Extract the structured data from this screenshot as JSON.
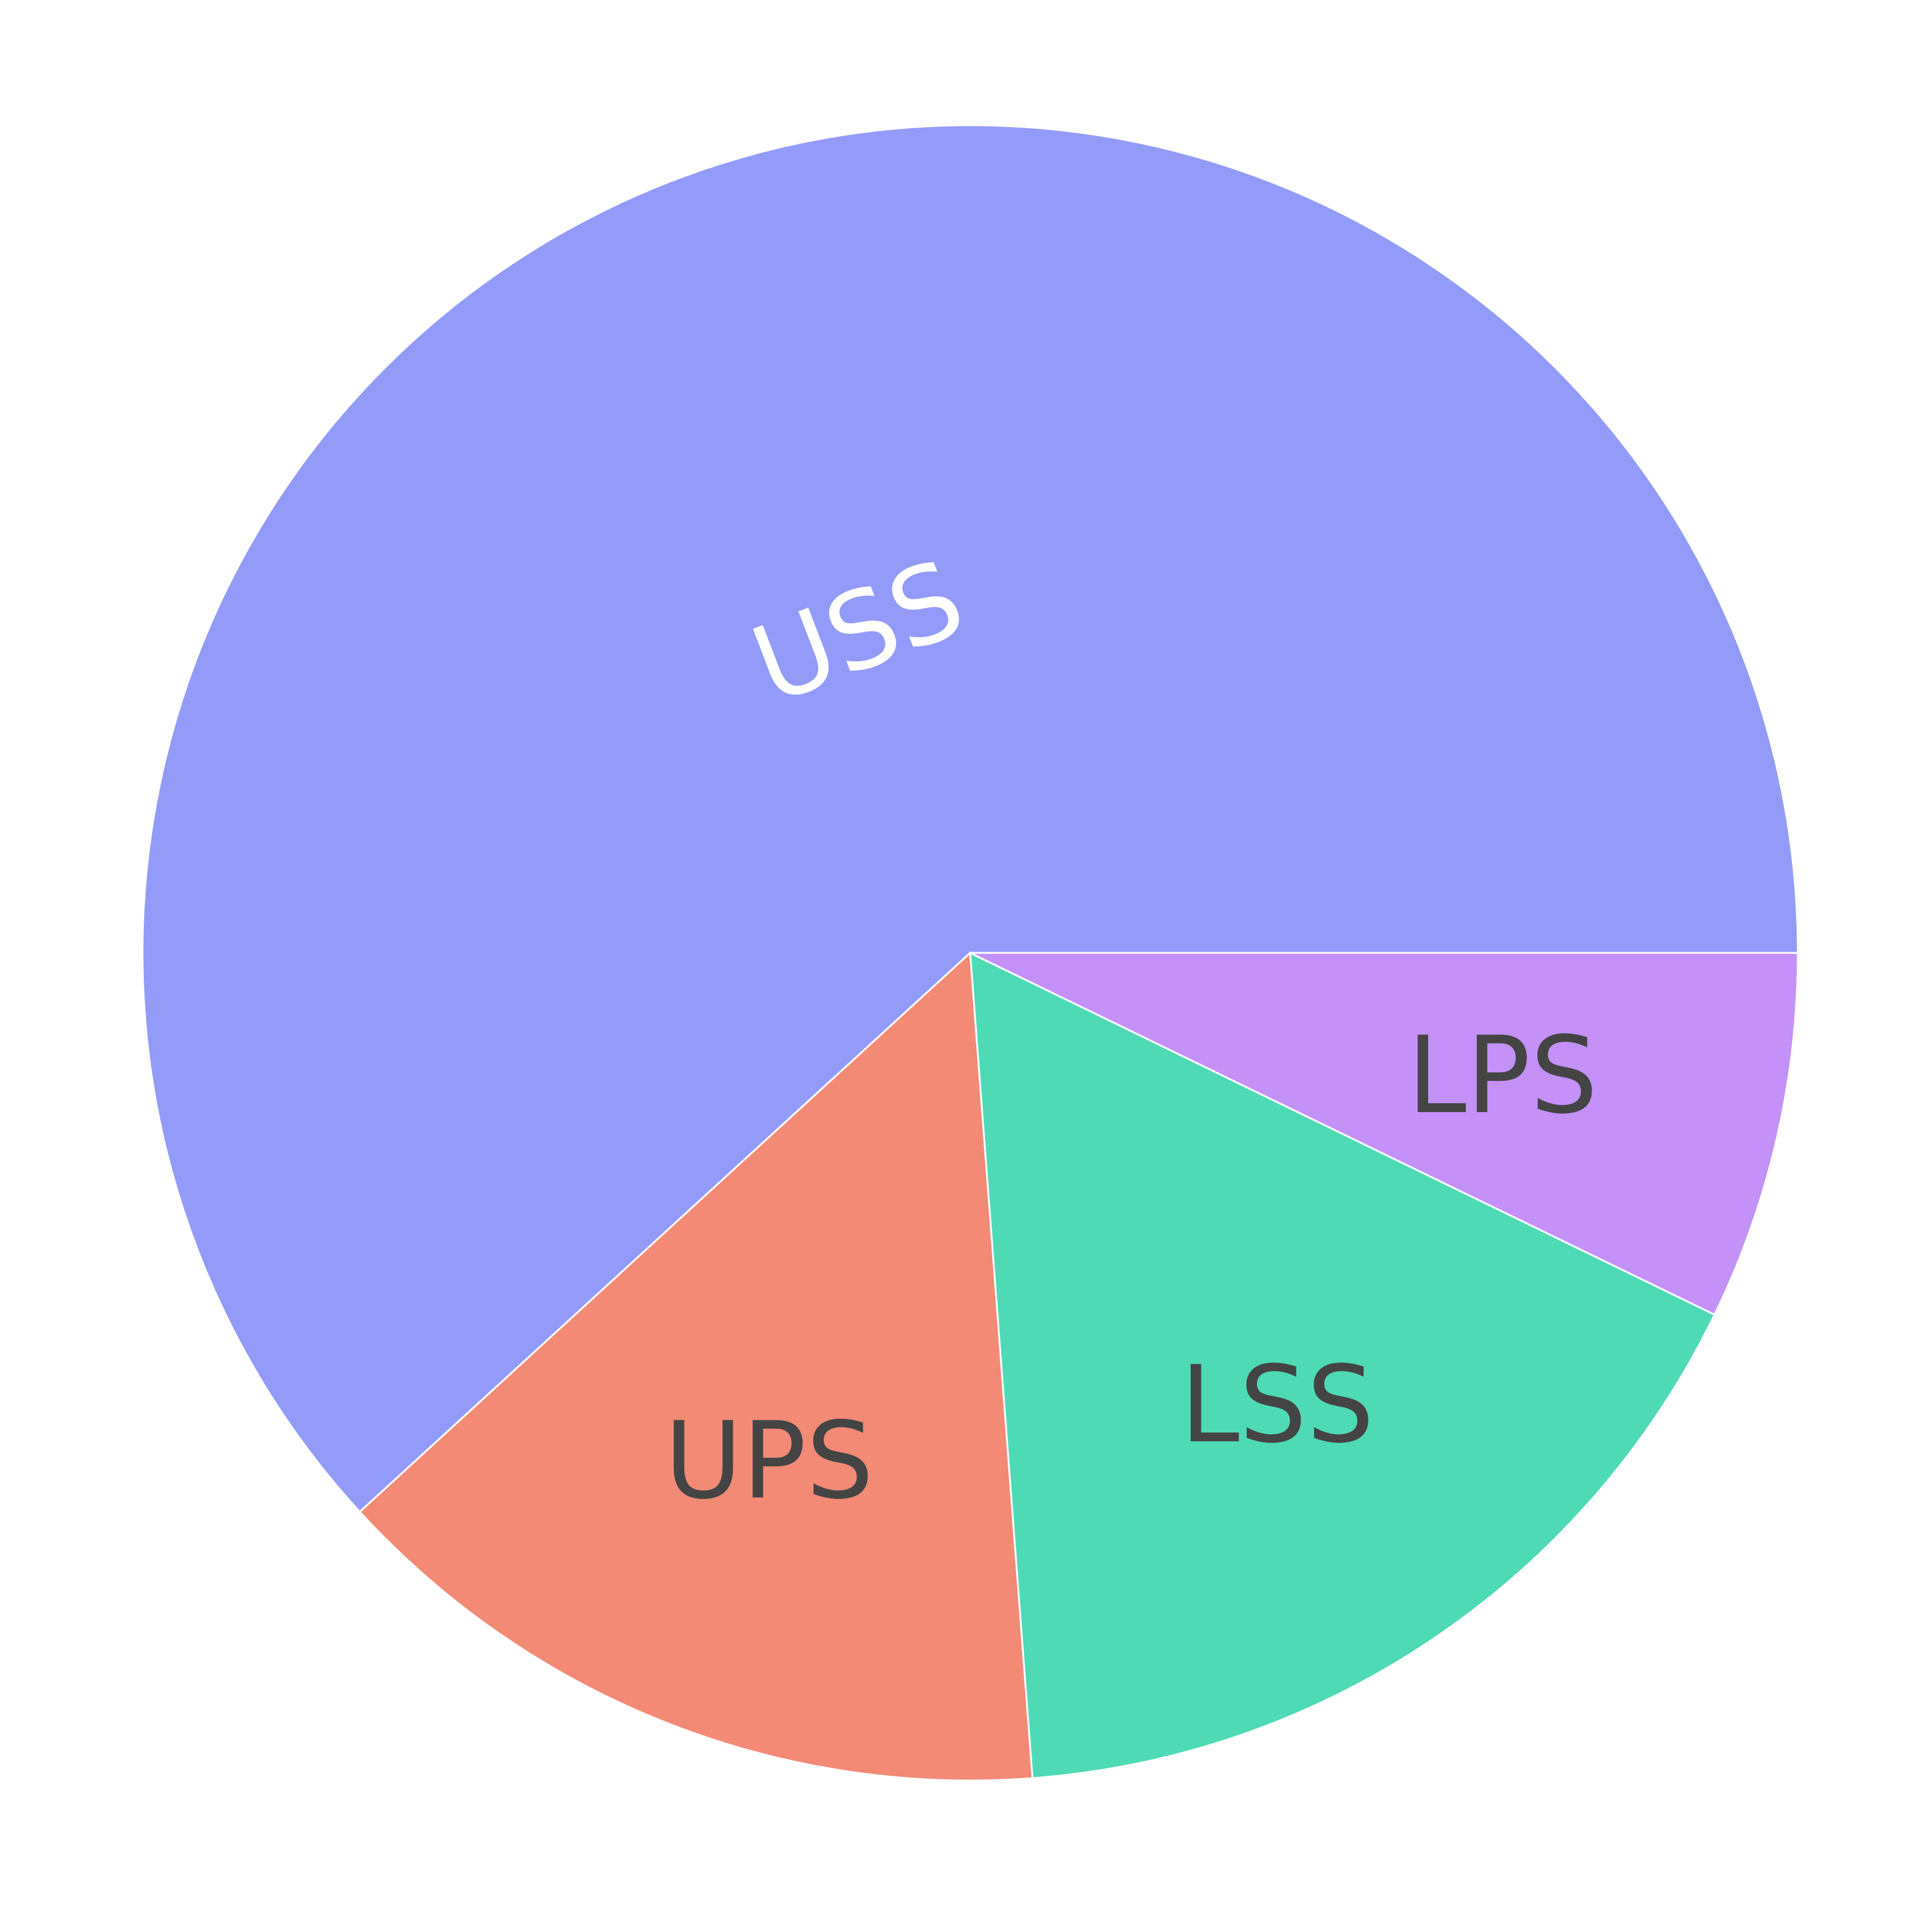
{
  "chart_data": {
    "type": "pie",
    "slices": [
      {
        "label": "USS",
        "value": 61.8,
        "color": "#939bf9",
        "label_color": "#ffffff"
      },
      {
        "label": "UPS",
        "value": 14.4,
        "color": "#f28a76",
        "label_color": "#444444"
      },
      {
        "label": "LSS",
        "value": 16.6,
        "color": "#4fdab6",
        "label_color": "#444444"
      },
      {
        "label": "LPS",
        "value": 7.2,
        "color": "#c391f8",
        "label_color": "#444444"
      }
    ]
  }
}
